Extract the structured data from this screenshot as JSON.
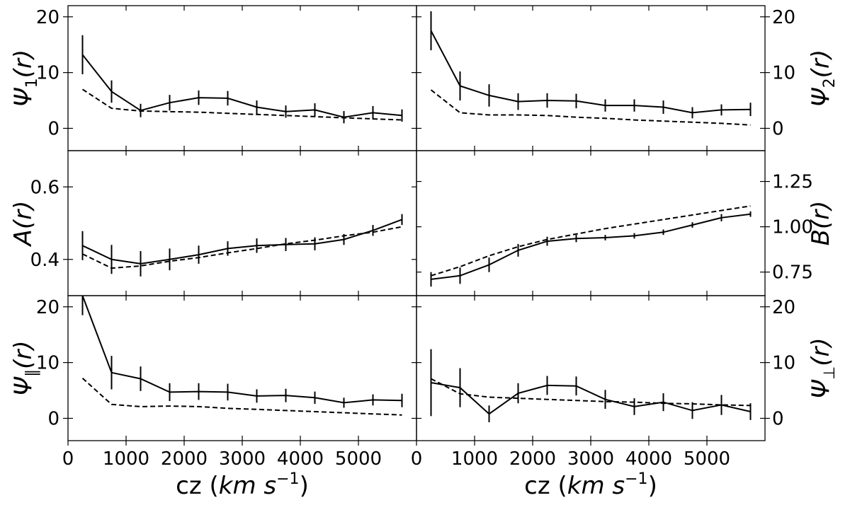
{
  "chart_data": [
    {
      "type": "line",
      "column": "left",
      "row": 0,
      "ylabel": "Ψ₁(r)",
      "ylim": [
        -4,
        22
      ],
      "yticks": [
        0,
        10,
        20
      ],
      "ytick_labels": [
        "0",
        "10",
        "20"
      ],
      "ytick_side": "left",
      "xlim": [
        0,
        6000
      ],
      "xtick_labels_shown": false,
      "series": [
        {
          "style": "solid",
          "x": [
            250,
            750,
            1250,
            1750,
            2250,
            2750,
            3250,
            3750,
            4250,
            4750,
            5250,
            5750
          ],
          "y": [
            13.2,
            6.6,
            3.2,
            4.6,
            5.5,
            5.4,
            3.8,
            3.0,
            3.3,
            2.0,
            2.8,
            2.3
          ],
          "err": [
            3.5,
            2.0,
            1.2,
            1.4,
            1.3,
            1.3,
            1.2,
            1.1,
            1.2,
            1.1,
            1.2,
            1.1
          ]
        },
        {
          "style": "dashed",
          "x": [
            250,
            750,
            1250,
            1750,
            2250,
            2750,
            3250,
            3750,
            4250,
            4750,
            5250,
            5750
          ],
          "y": [
            7.0,
            3.6,
            3.1,
            3.0,
            2.9,
            2.7,
            2.5,
            2.3,
            2.1,
            1.9,
            1.7,
            1.5
          ]
        }
      ]
    },
    {
      "type": "line",
      "column": "right",
      "row": 0,
      "ylabel": "Ψ₂(r)",
      "ylim": [
        -4,
        22
      ],
      "yticks": [
        0,
        10,
        20
      ],
      "ytick_labels": [
        "0",
        "10",
        "20"
      ],
      "ytick_side": "right",
      "xlim": [
        0,
        6000
      ],
      "xtick_labels_shown": false,
      "series": [
        {
          "style": "solid",
          "x": [
            250,
            750,
            1250,
            1750,
            2250,
            2750,
            3250,
            3750,
            4250,
            4750,
            5250,
            5750
          ],
          "y": [
            17.5,
            7.6,
            5.9,
            4.8,
            5.0,
            4.9,
            4.1,
            4.1,
            3.8,
            2.8,
            3.3,
            3.4
          ],
          "err": [
            3.5,
            2.6,
            2.0,
            1.5,
            1.3,
            1.3,
            1.1,
            1.1,
            1.2,
            1.0,
            1.0,
            1.2
          ]
        },
        {
          "style": "dashed",
          "x": [
            250,
            750,
            1250,
            1750,
            2250,
            2750,
            3250,
            3750,
            4250,
            4750,
            5250,
            5750
          ],
          "y": [
            6.9,
            2.8,
            2.4,
            2.4,
            2.3,
            2.0,
            1.8,
            1.5,
            1.3,
            1.1,
            0.9,
            0.6
          ]
        }
      ]
    },
    {
      "type": "line",
      "column": "left",
      "row": 1,
      "ylabel": "A(r)",
      "ylim": [
        0.3,
        0.7
      ],
      "yticks": [
        0.4,
        0.6
      ],
      "ytick_labels": [
        "0.4",
        "0.6"
      ],
      "ytick_side": "left",
      "xlim": [
        0,
        6000
      ],
      "xtick_labels_shown": false,
      "series": [
        {
          "style": "solid",
          "x": [
            250,
            750,
            1250,
            1750,
            2250,
            2750,
            3250,
            3750,
            4250,
            4750,
            5250,
            5750
          ],
          "y": [
            0.438,
            0.4,
            0.388,
            0.4,
            0.413,
            0.43,
            0.438,
            0.441,
            0.443,
            0.455,
            0.48,
            0.51
          ],
          "err": [
            0.04,
            0.04,
            0.035,
            0.03,
            0.025,
            0.02,
            0.02,
            0.018,
            0.018,
            0.015,
            0.015,
            0.015
          ]
        },
        {
          "style": "dashed",
          "x": [
            250,
            750,
            1250,
            1750,
            2250,
            2750,
            3250,
            3750,
            4250,
            4750,
            5250,
            5750
          ],
          "y": [
            0.415,
            0.376,
            0.382,
            0.395,
            0.405,
            0.418,
            0.43,
            0.443,
            0.453,
            0.465,
            0.475,
            0.49
          ]
        }
      ]
    },
    {
      "type": "line",
      "column": "right",
      "row": 1,
      "ylabel": "B(r)",
      "ylim": [
        0.62,
        1.42
      ],
      "yticks": [
        0.75,
        1.0,
        1.25
      ],
      "ytick_labels": [
        "0.75",
        "1.00",
        "1.25"
      ],
      "ytick_side": "right",
      "xlim": [
        0,
        6000
      ],
      "xtick_labels_shown": false,
      "series": [
        {
          "style": "solid",
          "x": [
            250,
            750,
            1250,
            1750,
            2250,
            2750,
            3250,
            3750,
            4250,
            4750,
            5250,
            5750
          ],
          "y": [
            0.71,
            0.73,
            0.79,
            0.87,
            0.92,
            0.935,
            0.94,
            0.95,
            0.97,
            1.01,
            1.05,
            1.07
          ],
          "err": [
            0.04,
            0.045,
            0.04,
            0.035,
            0.025,
            0.02,
            0.015,
            0.015,
            0.015,
            0.015,
            0.02,
            0.015
          ]
        },
        {
          "style": "dashed",
          "x": [
            250,
            750,
            1250,
            1750,
            2250,
            2750,
            3250,
            3750,
            4250,
            4750,
            5250,
            5750
          ],
          "y": [
            0.73,
            0.78,
            0.84,
            0.89,
            0.93,
            0.96,
            0.99,
            1.015,
            1.04,
            1.065,
            1.09,
            1.115
          ]
        }
      ]
    },
    {
      "type": "line",
      "column": "left",
      "row": 2,
      "ylabel": "Ψ∥(r)",
      "xlabel": "cz (km s⁻¹)",
      "ylim": [
        -4,
        22
      ],
      "yticks": [
        0,
        10,
        20
      ],
      "ytick_labels": [
        "0",
        "10",
        "20"
      ],
      "ytick_side": "left",
      "xlim": [
        0,
        6000
      ],
      "xticks": [
        0,
        1000,
        2000,
        3000,
        4000,
        5000
      ],
      "xtick_labels": [
        "0",
        "1000",
        "2000",
        "3000",
        "4000",
        "5000"
      ],
      "series": [
        {
          "style": "solid",
          "x": [
            250,
            750,
            1250,
            1750,
            2250,
            2750,
            3250,
            3750,
            4250,
            4750,
            5250,
            5750
          ],
          "y": [
            22.0,
            8.2,
            7.1,
            4.7,
            4.8,
            4.7,
            4.0,
            4.1,
            3.7,
            2.8,
            3.3,
            3.2
          ],
          "err": [
            3.5,
            3.0,
            2.2,
            1.6,
            1.5,
            1.5,
            1.2,
            1.2,
            1.1,
            0.9,
            1.0,
            1.2
          ]
        },
        {
          "style": "dashed",
          "x": [
            250,
            750,
            1250,
            1750,
            2250,
            2750,
            3250,
            3750,
            4250,
            4750,
            5250,
            5750
          ],
          "y": [
            7.2,
            2.5,
            2.1,
            2.2,
            2.1,
            1.8,
            1.6,
            1.4,
            1.2,
            1.0,
            0.8,
            0.6
          ]
        }
      ]
    },
    {
      "type": "line",
      "column": "right",
      "row": 2,
      "ylabel": "Ψ⊥(r)",
      "xlabel": "cz (km s⁻¹)",
      "ylim": [
        -4,
        22
      ],
      "yticks": [
        0,
        10,
        20
      ],
      "ytick_labels": [
        "0",
        "10",
        "20"
      ],
      "ytick_side": "right",
      "xlim": [
        0,
        6000
      ],
      "xticks": [
        0,
        1000,
        2000,
        3000,
        4000,
        5000
      ],
      "xtick_labels": [
        "0",
        "1000",
        "2000",
        "3000",
        "4000",
        "5000"
      ],
      "series": [
        {
          "style": "solid",
          "x": [
            250,
            750,
            1250,
            1750,
            2250,
            2750,
            3250,
            3750,
            4250,
            4750,
            5250,
            5750
          ],
          "y": [
            6.4,
            5.5,
            0.8,
            4.5,
            5.9,
            5.8,
            3.4,
            2.1,
            2.9,
            1.4,
            2.4,
            1.2
          ],
          "err": [
            6.0,
            3.5,
            1.5,
            1.8,
            1.7,
            1.7,
            1.7,
            1.5,
            1.6,
            1.5,
            1.8,
            1.5
          ]
        },
        {
          "style": "dashed",
          "x": [
            250,
            750,
            1250,
            1750,
            2250,
            2750,
            3250,
            3750,
            4250,
            4750,
            5250,
            5750
          ],
          "y": [
            7.1,
            4.4,
            3.8,
            3.6,
            3.4,
            3.2,
            3.0,
            2.9,
            2.7,
            2.6,
            2.4,
            2.3
          ]
        }
      ]
    }
  ]
}
